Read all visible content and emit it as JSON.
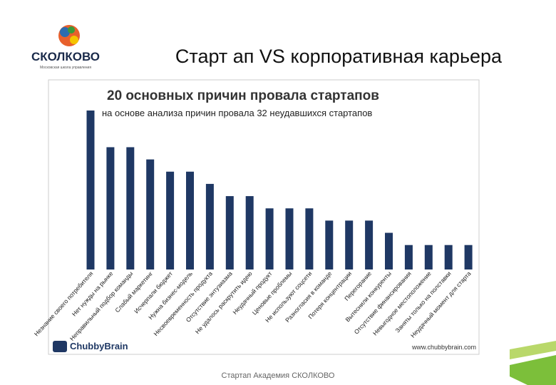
{
  "slide": {
    "logo": "СКОЛКОВО",
    "tagline": "Московская школа управления",
    "title": "Старт ап VS корпоративная карьера",
    "footer": "Стартап Академия СКОЛКОВО"
  },
  "chart_data": {
    "type": "bar",
    "title": "20 основных причин провала стартапов",
    "subtitle": "на основе анализа причин провала 32 неудавшихся стартапов",
    "source": "ChubbyBrain",
    "url": "www.chubbybrain.com",
    "categories": [
      "Незнание своего потребителя",
      "Нет нужды на рынке",
      "Неправильный подбор команды",
      "Слабый маркетинг",
      "Исчерпали бюджет",
      "Нужна бизнес-модель",
      "Несвоевременность продукта",
      "Отсутствие энтузиазма",
      "Не удалось раскрутить идею",
      "Неудачный продукт",
      "Ценовые проблемы",
      "Не используют соцсети",
      "Разногласия в команде",
      "Потеря концентрации",
      "Перегорание",
      "Вытеснили конкуренты",
      "Отсутствие финансирования",
      "Невыгодное местоположение",
      "Заняты только на полставки",
      "Неудачный момент для старта"
    ],
    "values": [
      13,
      10,
      10,
      9,
      8,
      8,
      7,
      6,
      6,
      5,
      5,
      5,
      4,
      4,
      4,
      3,
      2,
      2,
      2,
      2
    ],
    "color": "#1f3864"
  }
}
